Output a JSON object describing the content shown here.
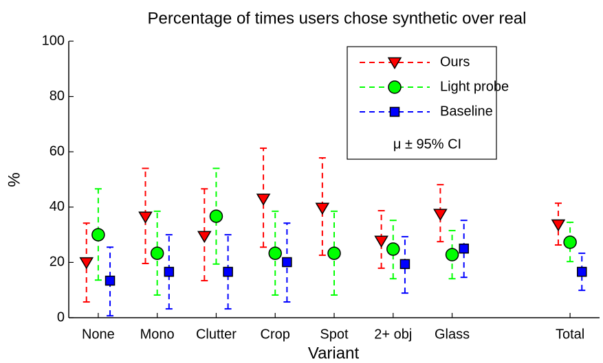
{
  "chart_data": {
    "type": "errorbar",
    "title": "Percentage of times users chose synthetic over real",
    "xlabel": "Variant",
    "ylabel": "%",
    "x": [
      1,
      2,
      3,
      4,
      5,
      6,
      7,
      9
    ],
    "xlim": [
      0.5,
      9.5
    ],
    "xticks": [
      {
        "value": 1,
        "label": "None"
      },
      {
        "value": 2,
        "label": "Mono"
      },
      {
        "value": 3,
        "label": "Clutter"
      },
      {
        "value": 4,
        "label": "Crop"
      },
      {
        "value": 5,
        "label": "Spot"
      },
      {
        "value": 6,
        "label": "2+ obj"
      },
      {
        "value": 7,
        "label": "Glass"
      },
      {
        "value": 9,
        "label": "Total"
      }
    ],
    "ylim": [
      0,
      100
    ],
    "yticks": [
      0,
      20,
      40,
      60,
      80,
      100
    ],
    "grid": false,
    "legend": "upper right",
    "legend_note": "μ ± 95% CI",
    "series": [
      {
        "name": "Ours",
        "color": "#ff0000",
        "marker": "triangle-down",
        "values": [
          20,
          36.5,
          29.5,
          43,
          39.7,
          27.8,
          37.5,
          33.7
        ],
        "lower": [
          5.7,
          19.6,
          13.4,
          25.5,
          22.6,
          17.9,
          27.5,
          26.3
        ],
        "upper": [
          34.2,
          54,
          46.6,
          61.3,
          57.8,
          38.7,
          48.1,
          41.4
        ]
      },
      {
        "name": "Light probe",
        "color": "#00ff00",
        "marker": "circle",
        "values": [
          30,
          23.3,
          36.7,
          23.3,
          23.3,
          24.8,
          22.8,
          27.3
        ],
        "lower": [
          13.6,
          8.2,
          19.4,
          8.2,
          8.2,
          14.1,
          14.1,
          20.3
        ],
        "upper": [
          46.6,
          38.5,
          54,
          38.5,
          38.5,
          35.2,
          31.5,
          34.5
        ]
      },
      {
        "name": "Baseline",
        "color": "#0000ff",
        "marker": "square",
        "values": [
          13.4,
          16.6,
          16.6,
          20.1,
          null,
          19.4,
          25,
          16.6
        ],
        "lower": [
          0.7,
          3.2,
          3.2,
          5.7,
          null,
          8.9,
          14.6,
          9.9
        ],
        "upper": [
          25.5,
          30,
          30,
          34.2,
          null,
          29.3,
          35.2,
          23.3
        ]
      }
    ]
  }
}
